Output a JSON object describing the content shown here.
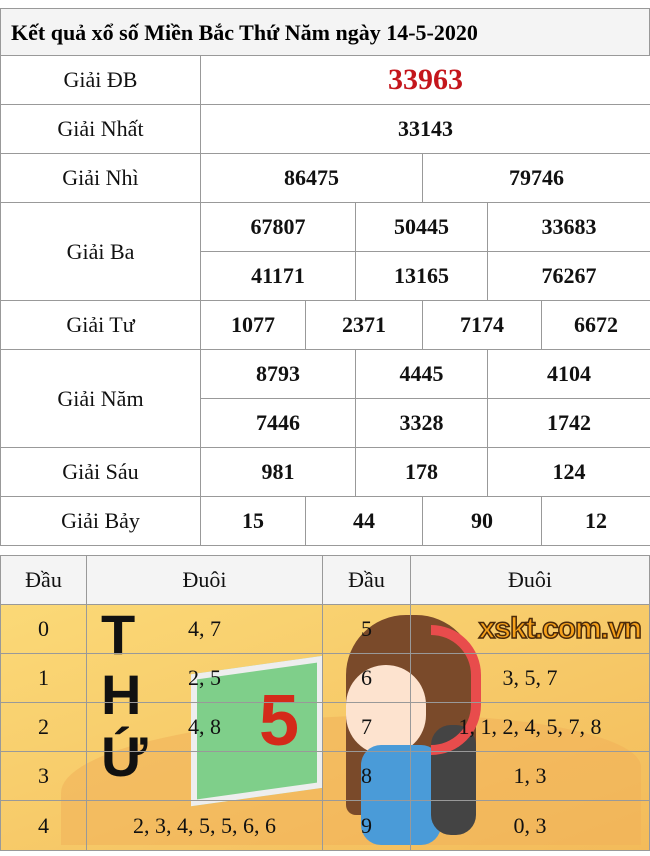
{
  "title": "Kết quả xổ số Miền Bắc Thứ Năm ngày 14-5-2020",
  "prizes": {
    "db": {
      "label": "Giải ĐB",
      "values": [
        "33963"
      ]
    },
    "nhat": {
      "label": "Giải Nhất",
      "values": [
        "33143"
      ]
    },
    "nhi": {
      "label": "Giải Nhì",
      "values": [
        "86475",
        "79746"
      ]
    },
    "ba": {
      "label": "Giải Ba",
      "values": [
        "67807",
        "50445",
        "33683",
        "41171",
        "13165",
        "76267"
      ]
    },
    "tu": {
      "label": "Giải Tư",
      "values": [
        "1077",
        "2371",
        "7174",
        "6672"
      ]
    },
    "nam": {
      "label": "Giải Năm",
      "values": [
        "8793",
        "4445",
        "4104",
        "7446",
        "3328",
        "1742"
      ]
    },
    "sau": {
      "label": "Giải Sáu",
      "values": [
        "981",
        "178",
        "124"
      ]
    },
    "bay": {
      "label": "Giải Bảy",
      "values": [
        "15",
        "44",
        "90",
        "12"
      ]
    }
  },
  "colors": {
    "special": "#c4161c",
    "header_bg": "#f4f4f4",
    "background": "#fbd977"
  },
  "loto": {
    "headers": [
      "Đầu",
      "Đuôi",
      "Đầu",
      "Đuôi"
    ],
    "rows": [
      [
        "0",
        "4, 7",
        "5",
        ""
      ],
      [
        "1",
        "2, 5",
        "6",
        "3, 5, 7"
      ],
      [
        "2",
        "4, 8",
        "7",
        "1, 1, 2, 4, 5, 7, 8"
      ],
      [
        "3",
        "",
        "8",
        "1, 3"
      ],
      [
        "4",
        "2, 3, 4, 5, 5, 6, 6",
        "9",
        "0, 3"
      ]
    ]
  },
  "decor": {
    "letters": [
      "T",
      "H",
      "Ứ"
    ],
    "number": "5",
    "watermark": "xskt.com.vn"
  }
}
